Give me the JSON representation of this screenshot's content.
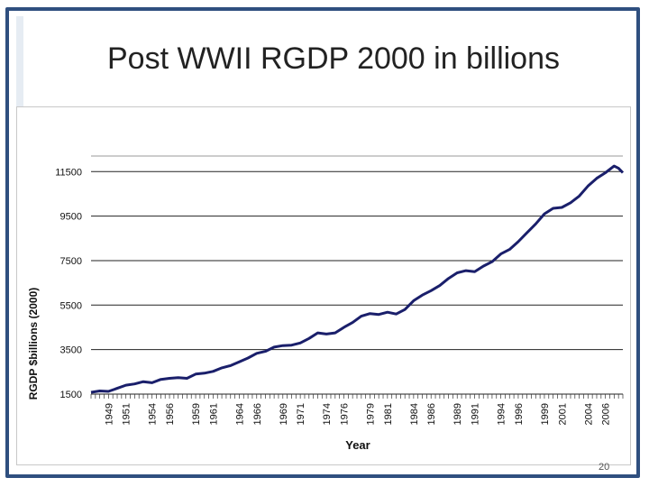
{
  "slide": {
    "title": "Post WWII RGDP 2000 in billions",
    "page_number": "20",
    "frame_color": "#2f4f7f"
  },
  "chart_data": {
    "type": "line",
    "title": "Post WWII RGDP 2000 in billions",
    "xlabel": "Year",
    "ylabel": "RGDP $billions (2000)",
    "ylim": [
      1500,
      12200
    ],
    "yticks": [
      1500,
      3500,
      5500,
      7500,
      9500,
      11500
    ],
    "xrange": [
      1947,
      2008
    ],
    "xtick_labels": [
      "1949",
      "1951",
      "1954",
      "1956",
      "1959",
      "1961",
      "1964",
      "1966",
      "1969",
      "1971",
      "1974",
      "1976",
      "1979",
      "1981",
      "1984",
      "1986",
      "1989",
      "1991",
      "1994",
      "1996",
      "1999",
      "2001",
      "2004",
      "2006"
    ],
    "grid": true,
    "line_color": "#1a1f6b",
    "series": [
      {
        "name": "RGDP",
        "x": [
          1947,
          1948,
          1949,
          1950,
          1951,
          1952,
          1953,
          1954,
          1955,
          1956,
          1957,
          1958,
          1959,
          1960,
          1961,
          1962,
          1963,
          1964,
          1965,
          1966,
          1967,
          1968,
          1969,
          1970,
          1971,
          1972,
          1973,
          1974,
          1975,
          1976,
          1977,
          1978,
          1979,
          1980,
          1981,
          1982,
          1983,
          1984,
          1985,
          1986,
          1987,
          1988,
          1989,
          1990,
          1991,
          1992,
          1993,
          1994,
          1995,
          1996,
          1997,
          1998,
          1999,
          2000,
          2001,
          2002,
          2003,
          2004,
          2005,
          2006,
          2007,
          2007.5,
          2008
        ],
        "values": [
          1580,
          1640,
          1620,
          1760,
          1900,
          1960,
          2060,
          2010,
          2160,
          2210,
          2240,
          2210,
          2400,
          2440,
          2520,
          2680,
          2780,
          2950,
          3120,
          3330,
          3420,
          3610,
          3680,
          3700,
          3800,
          4000,
          4250,
          4200,
          4250,
          4500,
          4720,
          5000,
          5120,
          5080,
          5180,
          5100,
          5300,
          5700,
          5950,
          6150,
          6380,
          6700,
          6950,
          7050,
          7000,
          7250,
          7450,
          7800,
          8000,
          8350,
          8750,
          9150,
          9600,
          9850,
          9890,
          10100,
          10400,
          10850,
          11200,
          11450,
          11750,
          11650,
          11450
        ]
      }
    ]
  }
}
